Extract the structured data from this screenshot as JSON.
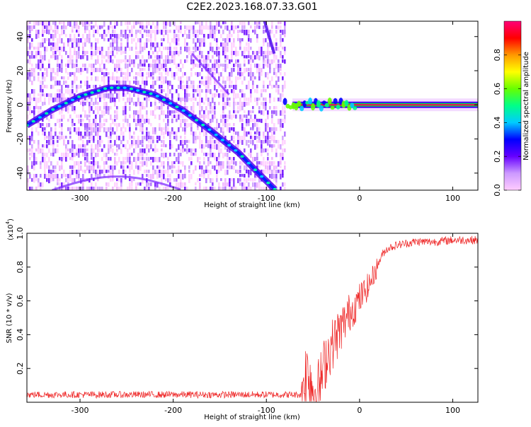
{
  "page": {
    "title": "C2E2.2023.168.07.33.G01"
  },
  "chart_data": [
    {
      "type": "heatmap",
      "title": "C2E2.2023.168.07.33.G01",
      "xlabel": "Height of straight line (km)",
      "ylabel": "Frequency (Hz)",
      "xlim": [
        -357,
        127
      ],
      "ylim": [
        -50,
        49
      ],
      "x_ticks": [
        -300,
        -200,
        -100,
        0,
        100
      ],
      "y_ticks": [
        -40,
        -20,
        0,
        20,
        40
      ],
      "colorbar": {
        "label": "Normalized spectral amplitude",
        "range": [
          0,
          1
        ],
        "ticks": [
          0.0,
          0.2,
          0.4,
          0.6,
          0.8
        ],
        "tick_labels": [
          "0.0",
          "0.2",
          "0.4",
          "0.6",
          "0.8"
        ],
        "colors": [
          "#ffccff",
          "#cc99ff",
          "#6600ff",
          "#0000ff",
          "#00ccff",
          "#00ff88",
          "#66ff00",
          "#ffff00",
          "#ff9900",
          "#ff0000",
          "#ff0077"
        ]
      },
      "data_boundary_km": -80,
      "tone_curve": {
        "x": [
          -357,
          -330,
          -300,
          -270,
          -250,
          -220,
          -190,
          -160,
          -130,
          -105,
          -90
        ],
        "y": [
          -12,
          -3,
          5,
          10,
          10,
          6,
          -3,
          -15,
          -28,
          -42,
          -50
        ]
      },
      "flat_tone": {
        "from_x": -80,
        "to_x": 127,
        "y": 0
      }
    },
    {
      "type": "line",
      "xlabel": "Height of straight line (km)",
      "ylabel": "SNR (10 * v/v)",
      "multiplier_label": "(x10",
      "multiplier_exp": "4",
      "xlim": [
        -357,
        127
      ],
      "ylim": [
        0,
        1.0
      ],
      "x_ticks": [
        -300,
        -200,
        -100,
        0,
        100
      ],
      "y_ticks": [
        0.2,
        0.4,
        0.6,
        0.8,
        1.0
      ],
      "y_tick_labels": [
        "0.2",
        "0.4",
        "0.6",
        "0.8",
        "1.0"
      ],
      "series": [
        {
          "color": "#ee2222",
          "x": [
            -357,
            -200,
            -100,
            -63,
            -60,
            -55,
            -50,
            -45,
            -40,
            -35,
            -30,
            -25,
            -20,
            -15,
            -10,
            -5,
            0,
            5,
            10,
            15,
            20,
            25,
            30,
            40,
            50,
            60,
            80,
            100,
            127
          ],
          "y": [
            0.03,
            0.03,
            0.03,
            0.03,
            0.15,
            0.22,
            0.1,
            0.08,
            0.18,
            0.3,
            0.35,
            0.4,
            0.45,
            0.5,
            0.55,
            0.58,
            0.62,
            0.66,
            0.7,
            0.76,
            0.82,
            0.88,
            0.91,
            0.93,
            0.94,
            0.95,
            0.95,
            0.96,
            0.96
          ]
        }
      ]
    }
  ]
}
